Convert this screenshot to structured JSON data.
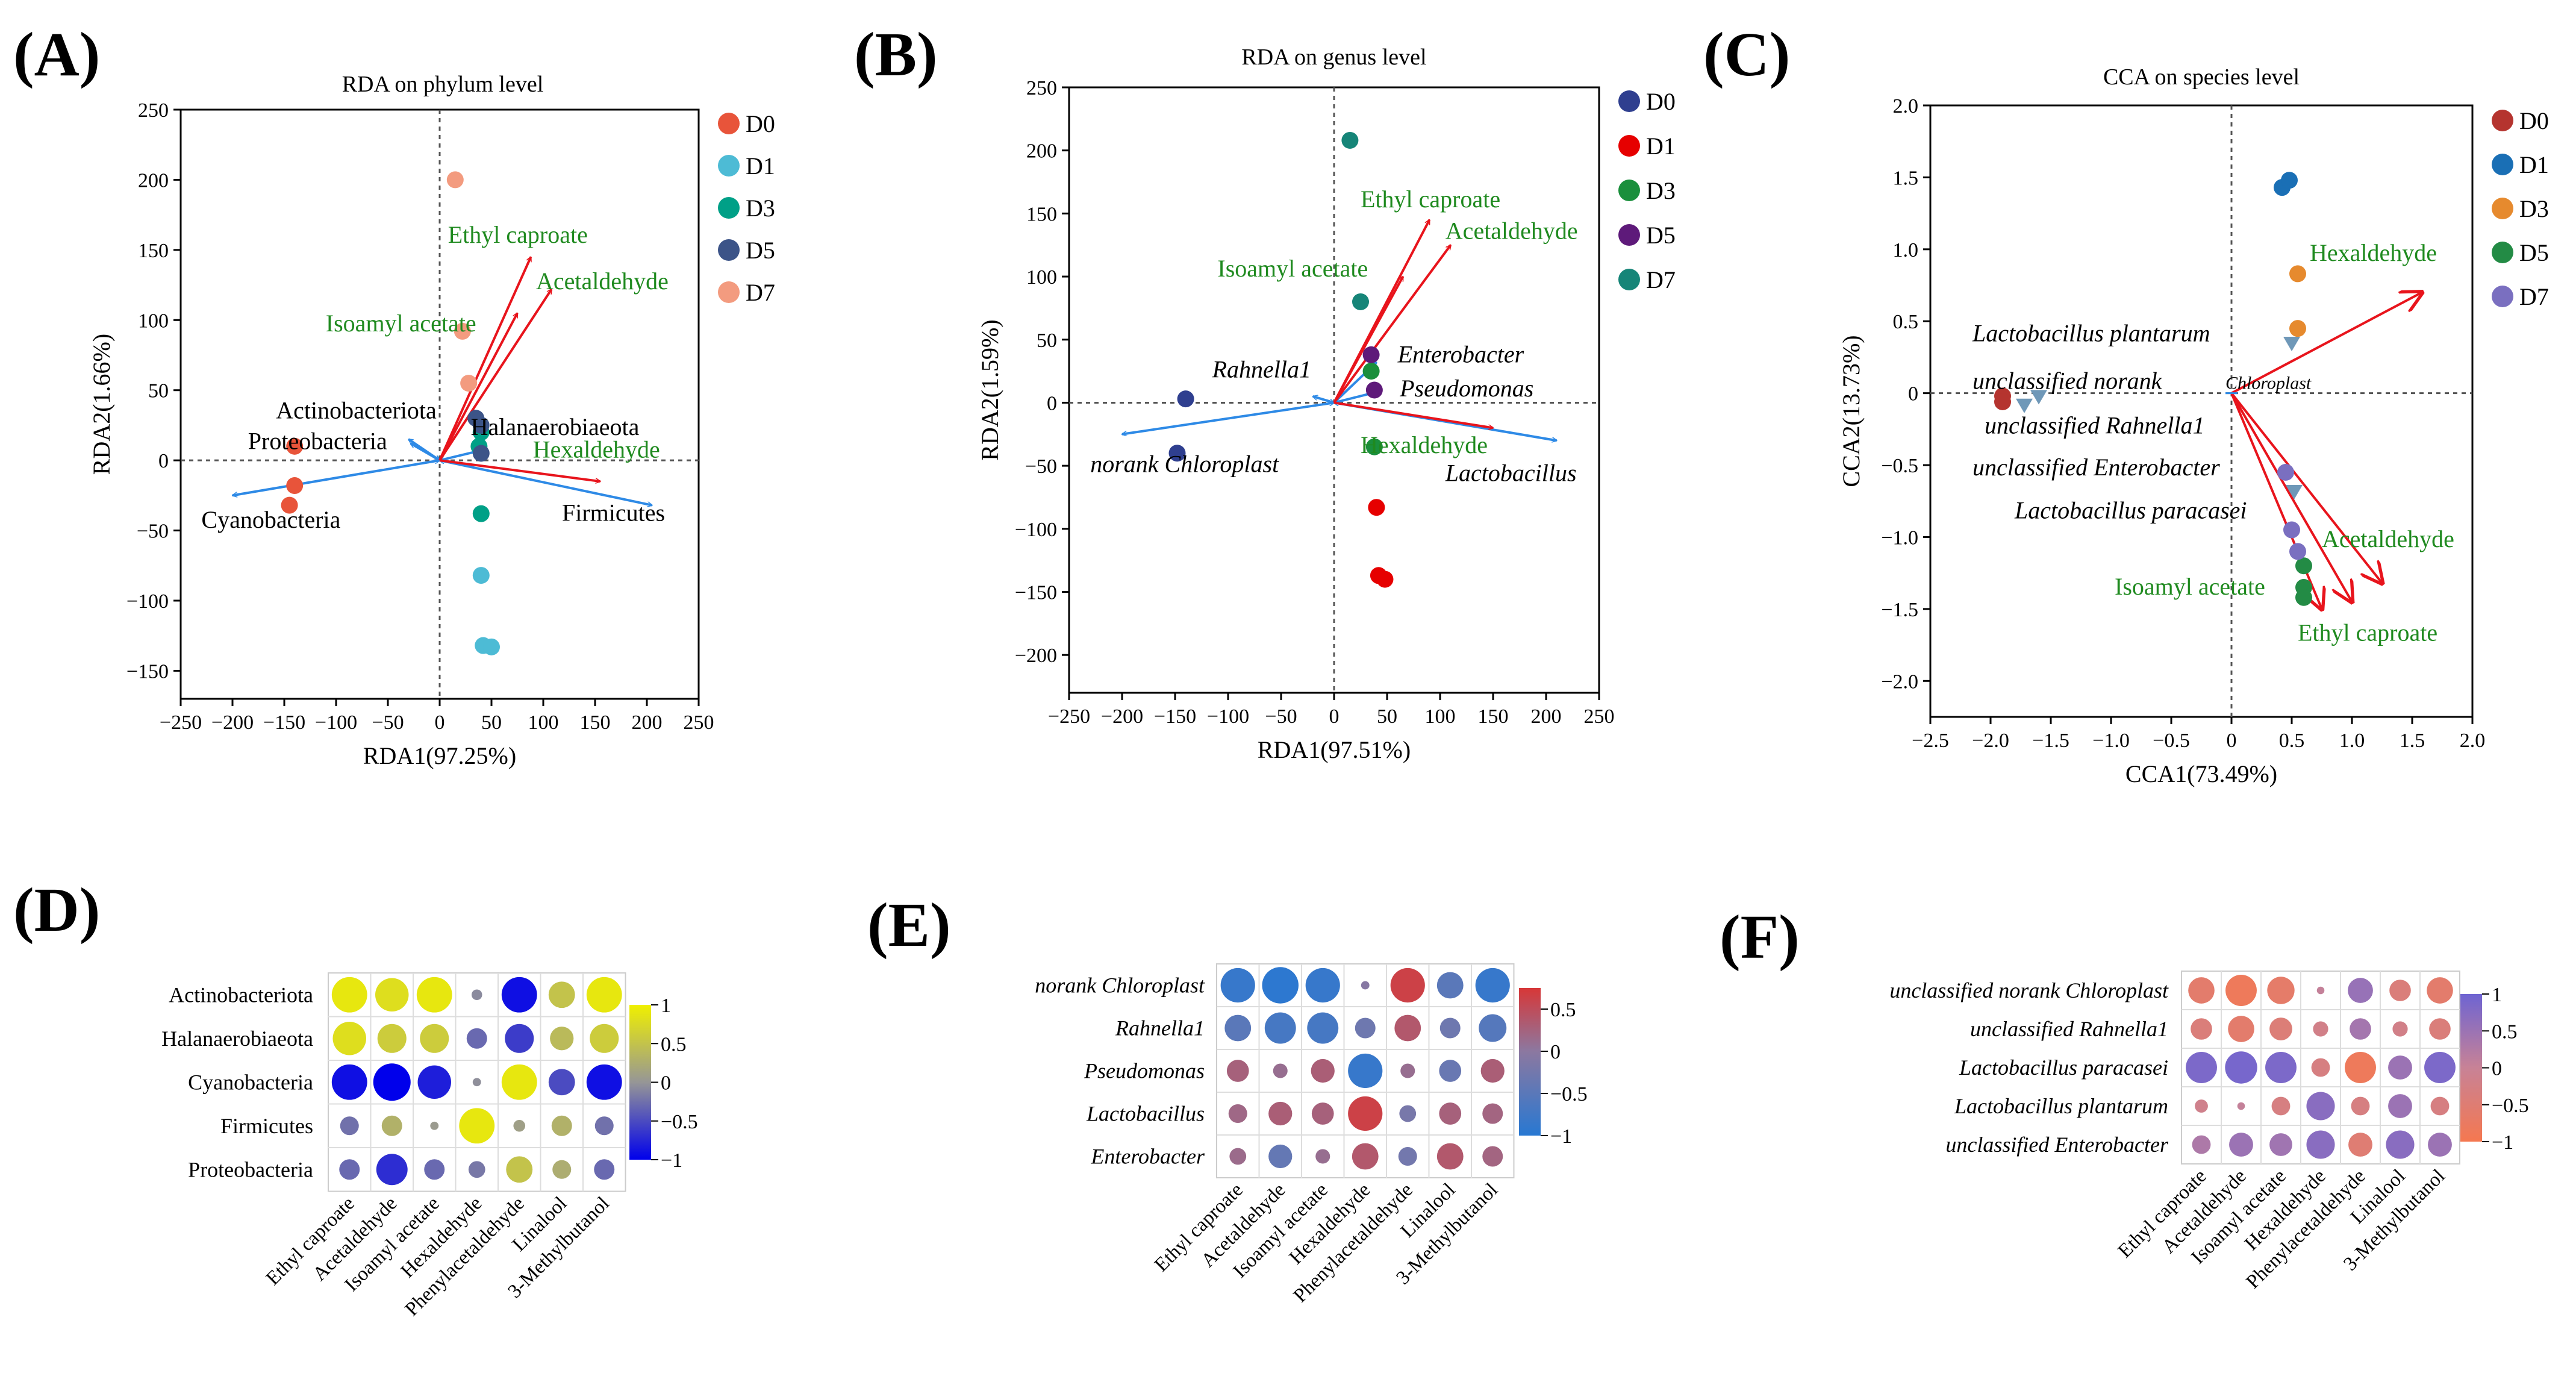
{
  "panel_labels": [
    "(A)",
    "(B)",
    "(C)",
    "(D)",
    "(E)",
    "(F)"
  ],
  "chart_data": [
    {
      "id": "A",
      "type": "scatter",
      "title": "RDA on phylum level",
      "xlabel": "RDA1(97.25%)",
      "ylabel": "RDA2(1.66%)",
      "xlim": [
        -250,
        250
      ],
      "ylim": [
        -170,
        250
      ],
      "xticks": [
        -250,
        -200,
        -150,
        -100,
        -50,
        0,
        50,
        100,
        150,
        200,
        250
      ],
      "yticks": [
        -150,
        -100,
        -50,
        0,
        50,
        100,
        150,
        200,
        250
      ],
      "legend": [
        {
          "name": "D0",
          "color": "#e8543a"
        },
        {
          "name": "D1",
          "color": "#4dbbd5"
        },
        {
          "name": "D3",
          "color": "#00a087"
        },
        {
          "name": "D5",
          "color": "#3c5488"
        },
        {
          "name": "D7",
          "color": "#f39b7f"
        }
      ],
      "points": [
        {
          "g": 0,
          "x": -140,
          "y": 10
        },
        {
          "g": 0,
          "x": -140,
          "y": -18
        },
        {
          "g": 0,
          "x": -145,
          "y": -32
        },
        {
          "g": 1,
          "x": 40,
          "y": -82
        },
        {
          "g": 1,
          "x": 42,
          "y": -132
        },
        {
          "g": 1,
          "x": 50,
          "y": -133
        },
        {
          "g": 2,
          "x": 38,
          "y": 10
        },
        {
          "g": 2,
          "x": 40,
          "y": 20
        },
        {
          "g": 2,
          "x": 40,
          "y": -38
        },
        {
          "g": 3,
          "x": 35,
          "y": 30
        },
        {
          "g": 3,
          "x": 40,
          "y": 25
        },
        {
          "g": 3,
          "x": 40,
          "y": 5
        },
        {
          "g": 4,
          "x": 15,
          "y": 200
        },
        {
          "g": 4,
          "x": 22,
          "y": 92
        },
        {
          "g": 4,
          "x": 28,
          "y": 55
        }
      ],
      "env_vectors": [
        {
          "label": "Ethyl caproate",
          "x": 88,
          "y": 145,
          "tx": 8,
          "ty": 155
        },
        {
          "label": "Acetaldehyde",
          "x": 108,
          "y": 122,
          "tx": 93,
          "ty": 122
        },
        {
          "label": "Isoamyl acetate",
          "x": 75,
          "y": 105,
          "tx": -110,
          "ty": 92
        },
        {
          "label": "Hexaldehyde",
          "x": 155,
          "y": -15,
          "tx": 90,
          "ty": 2
        }
      ],
      "species_vectors": [
        {
          "label": "Actinobacteriota",
          "x": -30,
          "y": 15,
          "tx": -158,
          "ty": 30,
          "italic": false
        },
        {
          "label": "Proteobacteria",
          "x": -28,
          "y": 12,
          "tx": -185,
          "ty": 8,
          "italic": false
        },
        {
          "label": "Cyanobacteria",
          "x": -200,
          "y": -25,
          "tx": -230,
          "ty": -48,
          "italic": false
        },
        {
          "label": "Halanaerobiaeota",
          "x": 45,
          "y": 8,
          "tx": 30,
          "ty": 18,
          "italic": false
        },
        {
          "label": "Firmicutes",
          "x": 205,
          "y": -32,
          "tx": 118,
          "ty": -43,
          "italic": false
        }
      ]
    },
    {
      "id": "B",
      "type": "scatter",
      "title": "RDA on genus level",
      "xlabel": "RDA1(97.51%)",
      "ylabel": "RDA2(1.59%)",
      "xlim": [
        -250,
        250
      ],
      "ylim": [
        -230,
        250
      ],
      "xticks": [
        -250,
        -200,
        -150,
        -100,
        -50,
        0,
        50,
        100,
        150,
        200,
        250
      ],
      "yticks": [
        -200,
        -150,
        -100,
        -50,
        0,
        50,
        100,
        150,
        200,
        250
      ],
      "legend": [
        {
          "name": "D0",
          "color": "#2f3f8f"
        },
        {
          "name": "D1",
          "color": "#e60000"
        },
        {
          "name": "D3",
          "color": "#1a8f3c"
        },
        {
          "name": "D5",
          "color": "#5e1a7a"
        },
        {
          "name": "D7",
          "color": "#168578"
        }
      ],
      "points": [
        {
          "g": 0,
          "x": -140,
          "y": 3
        },
        {
          "g": 0,
          "x": -148,
          "y": -40
        },
        {
          "g": 1,
          "x": 40,
          "y": -83
        },
        {
          "g": 1,
          "x": 42,
          "y": -137
        },
        {
          "g": 1,
          "x": 48,
          "y": -140
        },
        {
          "g": 2,
          "x": 35,
          "y": 25
        },
        {
          "g": 2,
          "x": 38,
          "y": -35
        },
        {
          "g": 3,
          "x": 35,
          "y": 38
        },
        {
          "g": 3,
          "x": 38,
          "y": 10
        },
        {
          "g": 4,
          "x": 15,
          "y": 208
        },
        {
          "g": 4,
          "x": 25,
          "y": 80
        }
      ],
      "env_vectors": [
        {
          "label": "Ethyl caproate",
          "x": 90,
          "y": 145,
          "tx": 25,
          "ty": 155
        },
        {
          "label": "Acetaldehyde",
          "x": 110,
          "y": 125,
          "tx": 105,
          "ty": 130
        },
        {
          "label": "Isoamyl acetate",
          "x": 65,
          "y": 100,
          "tx": -110,
          "ty": 100
        },
        {
          "label": "Hexaldehyde",
          "x": 150,
          "y": -20,
          "tx": 25,
          "ty": -40
        }
      ],
      "species_vectors": [
        {
          "label": "Rahnella1",
          "x": -20,
          "y": 5,
          "tx": -115,
          "ty": 20,
          "italic": true
        },
        {
          "label": "norank  Chloroplast",
          "x": -200,
          "y": -25,
          "tx": -230,
          "ty": -55,
          "italic": true
        },
        {
          "label": "Enterobacter",
          "x": 40,
          "y": 32,
          "tx": 60,
          "ty": 32,
          "italic": true
        },
        {
          "label": "Pseudomonas",
          "x": 38,
          "y": 8,
          "tx": 62,
          "ty": 5,
          "italic": true
        },
        {
          "label": "Lactobacillus",
          "x": 210,
          "y": -30,
          "tx": 105,
          "ty": -62,
          "italic": true
        }
      ]
    },
    {
      "id": "C",
      "type": "scatter",
      "title": "CCA on species level",
      "xlabel": "CCA1(73.49%)",
      "ylabel": "CCA2(13.73%)",
      "xlim": [
        -2.5,
        2.0
      ],
      "ylim": [
        -2.25,
        2.0
      ],
      "xticks": [
        -2.5,
        -2.0,
        -1.5,
        -1.0,
        -0.5,
        0,
        0.5,
        1.0,
        1.5,
        2.0
      ],
      "yticks": [
        -2.0,
        -1.5,
        -1.0,
        -0.5,
        0,
        0.5,
        1.0,
        1.5,
        2.0
      ],
      "xtick_labels": [
        "−2.5",
        "−2.0",
        "−1.5",
        "−1.0",
        "−0.5",
        "0",
        "0.5",
        "1.0",
        "1.5",
        "2.0"
      ],
      "ytick_labels": [
        "−2.0",
        "−1.5",
        "−1.0",
        "−0.5",
        "0",
        "0.5",
        "1.0",
        "1.5",
        "2.0"
      ],
      "legend": [
        {
          "name": "D0",
          "color": "#b5342f"
        },
        {
          "name": "D1",
          "color": "#1a6fb5"
        },
        {
          "name": "D3",
          "color": "#e68a2e"
        },
        {
          "name": "D5",
          "color": "#238b45"
        },
        {
          "name": "D7",
          "color": "#7a6fc0"
        }
      ],
      "points": [
        {
          "g": 0,
          "x": -1.9,
          "y": -0.02
        },
        {
          "g": 0,
          "x": -1.9,
          "y": -0.06
        },
        {
          "g": 1,
          "x": 0.42,
          "y": 1.43
        },
        {
          "g": 1,
          "x": 0.48,
          "y": 1.48
        },
        {
          "g": 2,
          "x": 0.55,
          "y": 0.45
        },
        {
          "g": 2,
          "x": 0.55,
          "y": 0.83
        },
        {
          "g": 3,
          "x": 0.6,
          "y": -1.2
        },
        {
          "g": 3,
          "x": 0.6,
          "y": -1.35
        },
        {
          "g": 3,
          "x": 0.6,
          "y": -1.42
        },
        {
          "g": 4,
          "x": 0.45,
          "y": -0.55
        },
        {
          "g": 4,
          "x": 0.5,
          "y": -0.95
        },
        {
          "g": 4,
          "x": 0.55,
          "y": -1.1
        }
      ],
      "species_markers": [
        {
          "x": -1.72,
          "y": -0.08
        },
        {
          "x": -1.6,
          "y": -0.02
        },
        {
          "x": 0.5,
          "y": 0.35
        },
        {
          "x": 0.52,
          "y": -0.68
        }
      ],
      "env_vectors": [
        {
          "label": "Hexaldehyde",
          "x": 1.58,
          "y": 0.7,
          "tx": 0.65,
          "ty": 0.92
        },
        {
          "label": "Acetaldehyde",
          "x": 1.25,
          "y": -1.32,
          "tx": 0.75,
          "ty": -1.07
        },
        {
          "label": "Isoamyl acetate",
          "x": 0.75,
          "y": -1.5,
          "tx": -0.97,
          "ty": -1.4
        },
        {
          "label": "Ethyl caproate",
          "x": 1.0,
          "y": -1.45,
          "tx": 0.55,
          "ty": -1.72
        }
      ],
      "species_labels": [
        {
          "label": "Lactobacillus  plantarum",
          "tx": -2.15,
          "ty": 0.36
        },
        {
          "label": "unclassified norank",
          "tx": -2.15,
          "ty": 0.03
        },
        {
          "label": "Chloroplast",
          "tx": -0.05,
          "ty": 0.03,
          "small": true
        },
        {
          "label": "unclassified Rahnella1",
          "tx": -2.05,
          "ty": -0.28
        },
        {
          "label": "unclassified  Enterobacter",
          "tx": -2.15,
          "ty": -0.57
        },
        {
          "label": "Lactobacillus  paracasei",
          "tx": -1.8,
          "ty": -0.87
        }
      ]
    },
    {
      "id": "D",
      "type": "heatmap",
      "rows": [
        "Actinobacteriota",
        "Halanaerobiaeota",
        "Cyanobacteria",
        "Firmicutes",
        "Proteobacteria"
      ],
      "rows_italic": false,
      "columns": [
        "Ethyl caproate",
        "Acetaldehyde",
        "Isoamyl acetate",
        "Hexaldehyde",
        "Phenylacetaldehyde",
        "Linalool",
        "3-Methylbutanol"
      ],
      "values": [
        [
          0.9,
          0.8,
          0.9,
          -0.08,
          -0.9,
          0.5,
          0.9
        ],
        [
          0.8,
          0.6,
          0.6,
          -0.3,
          -0.6,
          0.4,
          0.6
        ],
        [
          -0.9,
          -1.0,
          -0.8,
          -0.05,
          0.9,
          -0.5,
          -0.9
        ],
        [
          -0.25,
          0.3,
          0.05,
          0.9,
          0.1,
          0.3,
          -0.25
        ],
        [
          -0.3,
          -0.7,
          -0.3,
          -0.2,
          0.5,
          0.25,
          -0.3
        ]
      ],
      "colorbar": {
        "min": -1,
        "max": 1,
        "ticks": [
          1,
          0.5,
          0,
          -0.5,
          -1
        ],
        "tick_labels": [
          "1",
          "0.5",
          "0",
          "−0.5",
          "−1"
        ],
        "scheme": "blue-gray-yellow"
      }
    },
    {
      "id": "E",
      "type": "heatmap",
      "rows": [
        "norank  Chloroplast",
        "Rahnella1",
        "Pseudomonas",
        "Lactobacillus",
        "Enterobacter"
      ],
      "rows_italic": true,
      "columns": [
        "Ethyl caproate",
        "Acetaldehyde",
        "Isoamyl acetate",
        "Hexaldehyde",
        "Phenylacetaldehyde",
        "Linalool",
        "3-Methylbutanol"
      ],
      "values": [
        [
          -0.85,
          -0.95,
          -0.85,
          -0.05,
          0.85,
          -0.5,
          -0.85
        ],
        [
          -0.5,
          -0.7,
          -0.7,
          -0.3,
          0.5,
          -0.3,
          -0.55
        ],
        [
          0.35,
          0.15,
          0.4,
          -0.85,
          0.15,
          -0.35,
          0.4
        ],
        [
          0.25,
          0.4,
          0.35,
          0.85,
          -0.2,
          0.35,
          0.3
        ],
        [
          0.2,
          -0.4,
          0.15,
          0.5,
          -0.25,
          0.5,
          0.3
        ]
      ],
      "colorbar": {
        "min": -1,
        "max": 0.75,
        "ticks": [
          0.5,
          0,
          -0.5,
          -1
        ],
        "tick_labels": [
          "0.5",
          "0",
          "−0.5",
          "−1"
        ],
        "scheme": "blue-red"
      }
    },
    {
      "id": "F",
      "type": "heatmap",
      "rows": [
        "unclassified norank  Chloroplast",
        "unclassified Rahnella1",
        "Lactobacillus paracasei",
        "Lactobacillus  plantarum",
        "unclassified Enterobacter"
      ],
      "rows_italic": true,
      "columns": [
        "Ethyl caproate",
        "Acetaldehyde",
        "Isoamyl acetate",
        "Hexaldehyde",
        "Phenylacetaldehyde",
        "Linalool",
        "3-Methylbutanol"
      ],
      "values": [
        [
          -0.6,
          -0.85,
          -0.65,
          0.05,
          0.55,
          -0.4,
          -0.6
        ],
        [
          -0.4,
          -0.6,
          -0.45,
          -0.2,
          0.4,
          -0.2,
          -0.4
        ],
        [
          0.85,
          0.9,
          0.85,
          -0.3,
          -0.85,
          0.5,
          0.85
        ],
        [
          -0.15,
          0.05,
          -0.3,
          0.7,
          -0.3,
          0.5,
          -0.3
        ],
        [
          0.3,
          0.5,
          0.45,
          0.7,
          -0.5,
          0.7,
          0.5
        ]
      ],
      "colorbar": {
        "min": -1,
        "max": 1,
        "ticks": [
          1,
          0.5,
          0,
          -0.5,
          -1
        ],
        "tick_labels": [
          "1",
          "0.5",
          "0",
          "−0.5",
          "−1"
        ],
        "scheme": "orange-purple"
      }
    }
  ]
}
